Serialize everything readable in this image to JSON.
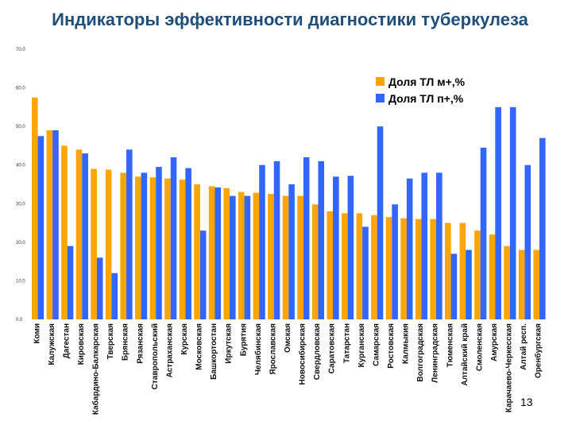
{
  "slide": {
    "title": "Индикаторы эффективности диагностики туберкулеза",
    "page_number": "13"
  },
  "colors": {
    "series_1": "#FFA500",
    "series_2": "#3366FF"
  },
  "chart_data": {
    "type": "bar",
    "title": "Индикаторы эффективности диагностики туберкулеза",
    "xlabel": "",
    "ylabel": "",
    "ylim": [
      0,
      70
    ],
    "yticks": [
      "0.0",
      "10.0",
      "20.0",
      "30.0",
      "40.0",
      "50.0",
      "60.0",
      "70.0"
    ],
    "grid": false,
    "legend_position": "top-right",
    "categories": [
      "Коми",
      "Калужская",
      "Дагестан",
      "Кировская",
      "Кабардино-Балкарская",
      "Тверская",
      "Брянская",
      "Рязанская",
      "Ставропольский",
      "Астраханская",
      "Курская",
      "Московская",
      "Башкортостан",
      "Иркутская",
      "Бурятия",
      "Челябинская",
      "Ярославская",
      "Омская",
      "Новосибирская",
      "Свердловская",
      "Саратовская",
      "Татарстан",
      "Курганская",
      "Самарская",
      "Ростовская",
      "Калмыкия",
      "Волгоградская",
      "Ленинградская",
      "Тюменская",
      "Алтайский край",
      "Смоленская",
      "Амурская",
      "Карачаево-Черкесская",
      "Алтай респ.",
      "Оренбургская"
    ],
    "series": [
      {
        "name": "Доля ТЛ м+,%",
        "values": [
          57.5,
          49.0,
          45.0,
          44.0,
          39.0,
          38.8,
          38.0,
          37.0,
          36.8,
          36.5,
          36.2,
          35.0,
          34.5,
          34.0,
          33.0,
          32.8,
          32.5,
          32.0,
          32.0,
          29.8,
          28.0,
          27.5,
          27.5,
          27.0,
          26.5,
          26.2,
          26.0,
          26.0,
          25.0,
          25.0,
          23.0,
          22.0,
          19.0,
          18.0,
          18.0
        ]
      },
      {
        "name": "Доля ТЛ п+,%",
        "values": [
          47.5,
          49.0,
          19.0,
          43.0,
          16.0,
          12.0,
          44.0,
          38.0,
          39.5,
          42.0,
          39.2,
          23.0,
          34.2,
          32.0,
          32.0,
          40.0,
          41.0,
          35.0,
          42.0,
          41.0,
          37.0,
          37.2,
          24.0,
          50.0,
          29.8,
          36.5,
          38.0,
          38.0,
          17.0,
          18.0,
          44.5,
          55.0,
          55.0,
          40.0,
          47.0
        ]
      }
    ]
  }
}
